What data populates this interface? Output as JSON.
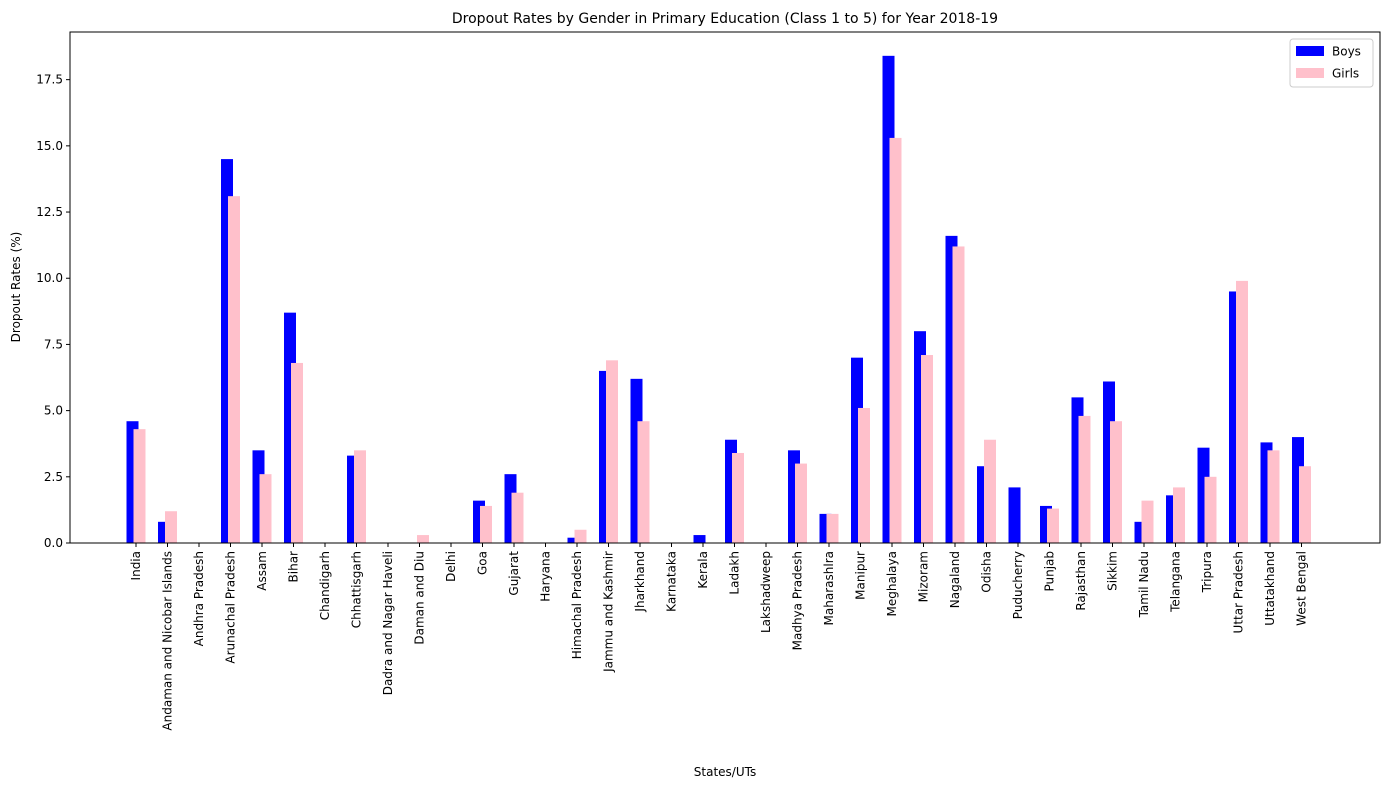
{
  "chart_data": {
    "type": "bar",
    "title": "Dropout Rates by Gender in Primary Education (Class 1 to 5) for Year 2018-19",
    "xlabel": "States/UTs",
    "ylabel": "Dropout Rates (%)",
    "ylim": [
      0,
      19.3
    ],
    "yticks": [
      0.0,
      2.5,
      5.0,
      7.5,
      10.0,
      12.5,
      15.0,
      17.5
    ],
    "ytick_labels": [
      "0.0",
      "2.5",
      "5.0",
      "7.5",
      "10.0",
      "12.5",
      "15.0",
      "17.5"
    ],
    "legend_position": "top-right",
    "grid": false,
    "categories": [
      "India",
      "Andaman and Nicobar Islands",
      "Andhra Pradesh",
      "Arunachal Pradesh",
      "Assam",
      "Bihar",
      "Chandigarh",
      "Chhattisgarh",
      "Dadra and Nagar Haveli",
      "Daman and Diu",
      "Delhi",
      "Goa",
      "Gujarat",
      "Haryana",
      "Himachal Pradesh",
      "Jammu and Kashmir",
      "Jharkhand",
      "Karnataka",
      "Kerala",
      "Ladakh",
      "Lakshadweep",
      "Madhya Pradesh",
      "Maharashlra",
      "Manipur",
      "Meghalaya",
      "Mizoram",
      "Nagaland",
      "Odisha",
      "Puducherry",
      "Punjab",
      "Rajasthan",
      "Sikkim",
      "Tamil Nadu",
      "Telangana",
      "Tripura",
      "Uttar Pradesh",
      "Uttatakhand",
      "West Bengal"
    ],
    "series": [
      {
        "name": "Boys",
        "color": "#0000ff",
        "values": [
          4.6,
          0.8,
          0.0,
          14.5,
          3.5,
          8.7,
          0.0,
          3.3,
          0.0,
          0.0,
          0.0,
          1.6,
          2.6,
          0.0,
          0.2,
          6.5,
          6.2,
          0.0,
          0.3,
          3.9,
          0.0,
          3.5,
          1.1,
          7.0,
          18.4,
          8.0,
          11.6,
          2.9,
          2.1,
          1.4,
          5.5,
          6.1,
          0.8,
          1.8,
          3.6,
          9.5,
          3.8,
          4.0
        ]
      },
      {
        "name": "Girls",
        "color": "#ffc0cb",
        "values": [
          4.3,
          1.2,
          0.0,
          13.1,
          2.6,
          6.8,
          0.0,
          3.5,
          0.0,
          0.3,
          0.0,
          1.4,
          1.9,
          0.0,
          0.5,
          6.9,
          4.6,
          0.0,
          0.0,
          3.4,
          0.0,
          3.0,
          1.1,
          5.1,
          15.3,
          7.1,
          11.2,
          3.9,
          0.0,
          1.3,
          4.8,
          4.6,
          1.6,
          2.1,
          2.5,
          9.9,
          3.5,
          2.9
        ]
      }
    ]
  }
}
